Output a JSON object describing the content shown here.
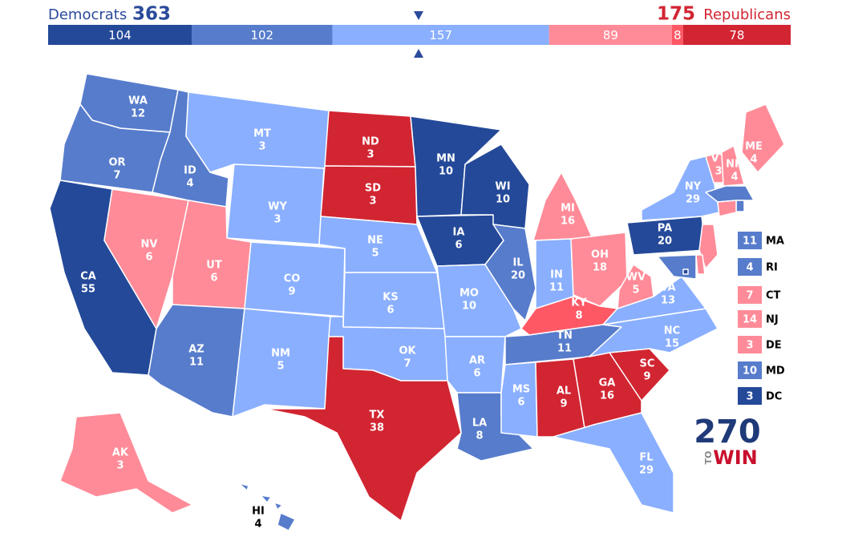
{
  "header": {
    "left_label": "Democrats",
    "left_total": 363,
    "right_total": 175,
    "right_label": "Republicans"
  },
  "bar": [
    {
      "value": 104,
      "color": "#244999"
    },
    {
      "value": 102,
      "color": "#577ccc"
    },
    {
      "value": 157,
      "color": "#8aafff"
    },
    {
      "value": 89,
      "color": "#ff8b98"
    },
    {
      "value": 8,
      "color": "#ff5865"
    },
    {
      "value": 78,
      "color": "#d22532"
    }
  ],
  "states": [
    {
      "abbr": "WA",
      "votes": 12,
      "color": "#577ccc"
    },
    {
      "abbr": "OR",
      "votes": 7,
      "color": "#577ccc"
    },
    {
      "abbr": "CA",
      "votes": 55,
      "color": "#244999"
    },
    {
      "abbr": "NV",
      "votes": 6,
      "color": "#ff8b98"
    },
    {
      "abbr": "ID",
      "votes": 4,
      "color": "#577ccc"
    },
    {
      "abbr": "MT",
      "votes": 3,
      "color": "#8aafff"
    },
    {
      "abbr": "WY",
      "votes": 3,
      "color": "#8aafff"
    },
    {
      "abbr": "UT",
      "votes": 6,
      "color": "#ff8b98"
    },
    {
      "abbr": "AZ",
      "votes": 11,
      "color": "#577ccc"
    },
    {
      "abbr": "CO",
      "votes": 9,
      "color": "#8aafff"
    },
    {
      "abbr": "NM",
      "votes": 5,
      "color": "#8aafff"
    },
    {
      "abbr": "ND",
      "votes": 3,
      "color": "#d22532"
    },
    {
      "abbr": "SD",
      "votes": 3,
      "color": "#d22532"
    },
    {
      "abbr": "NE",
      "votes": 5,
      "color": "#8aafff"
    },
    {
      "abbr": "KS",
      "votes": 6,
      "color": "#8aafff"
    },
    {
      "abbr": "OK",
      "votes": 7,
      "color": "#8aafff"
    },
    {
      "abbr": "TX",
      "votes": 38,
      "color": "#d22532"
    },
    {
      "abbr": "MN",
      "votes": 10,
      "color": "#244999"
    },
    {
      "abbr": "IA",
      "votes": 6,
      "color": "#244999"
    },
    {
      "abbr": "MO",
      "votes": 10,
      "color": "#8aafff"
    },
    {
      "abbr": "AR",
      "votes": 6,
      "color": "#8aafff"
    },
    {
      "abbr": "LA",
      "votes": 8,
      "color": "#577ccc"
    },
    {
      "abbr": "WI",
      "votes": 10,
      "color": "#244999"
    },
    {
      "abbr": "IL",
      "votes": 20,
      "color": "#577ccc"
    },
    {
      "abbr": "MI",
      "votes": 16,
      "color": "#ff8b98"
    },
    {
      "abbr": "IN",
      "votes": 11,
      "color": "#8aafff"
    },
    {
      "abbr": "OH",
      "votes": 18,
      "color": "#ff8b98"
    },
    {
      "abbr": "KY",
      "votes": 8,
      "color": "#ff5865"
    },
    {
      "abbr": "TN",
      "votes": 11,
      "color": "#577ccc"
    },
    {
      "abbr": "MS",
      "votes": 6,
      "color": "#8aafff"
    },
    {
      "abbr": "AL",
      "votes": 9,
      "color": "#d22532"
    },
    {
      "abbr": "GA",
      "votes": 16,
      "color": "#d22532"
    },
    {
      "abbr": "FL",
      "votes": 29,
      "color": "#8aafff"
    },
    {
      "abbr": "SC",
      "votes": 9,
      "color": "#d22532"
    },
    {
      "abbr": "NC",
      "votes": 15,
      "color": "#8aafff"
    },
    {
      "abbr": "VA",
      "votes": 13,
      "color": "#8aafff"
    },
    {
      "abbr": "WV",
      "votes": 5,
      "color": "#ff8b98"
    },
    {
      "abbr": "PA",
      "votes": 20,
      "color": "#244999"
    },
    {
      "abbr": "NY",
      "votes": 29,
      "color": "#8aafff"
    },
    {
      "abbr": "ME",
      "votes": 4,
      "color": "#ff8b98"
    },
    {
      "abbr": "VT",
      "votes": 3,
      "color": "#ff8b98"
    },
    {
      "abbr": "NH",
      "votes": 4,
      "color": "#ff8b98"
    },
    {
      "abbr": "AK",
      "votes": 3,
      "color": "#ff8b98"
    },
    {
      "abbr": "HI",
      "votes": 4,
      "color": "#577ccc"
    }
  ],
  "callouts": [
    {
      "abbr": "MA",
      "votes": 11,
      "color": "#577ccc"
    },
    {
      "abbr": "RI",
      "votes": 4,
      "color": "#577ccc"
    },
    {
      "abbr": "CT",
      "votes": 7,
      "color": "#ff8b98"
    },
    {
      "abbr": "NJ",
      "votes": 14,
      "color": "#ff8b98"
    },
    {
      "abbr": "DE",
      "votes": 3,
      "color": "#ff8b98"
    },
    {
      "abbr": "MD",
      "votes": 10,
      "color": "#577ccc"
    },
    {
      "abbr": "DC",
      "votes": 3,
      "color": "#244999"
    }
  ],
  "logo": {
    "number": "270",
    "to": "TO",
    "win": "WIN"
  }
}
